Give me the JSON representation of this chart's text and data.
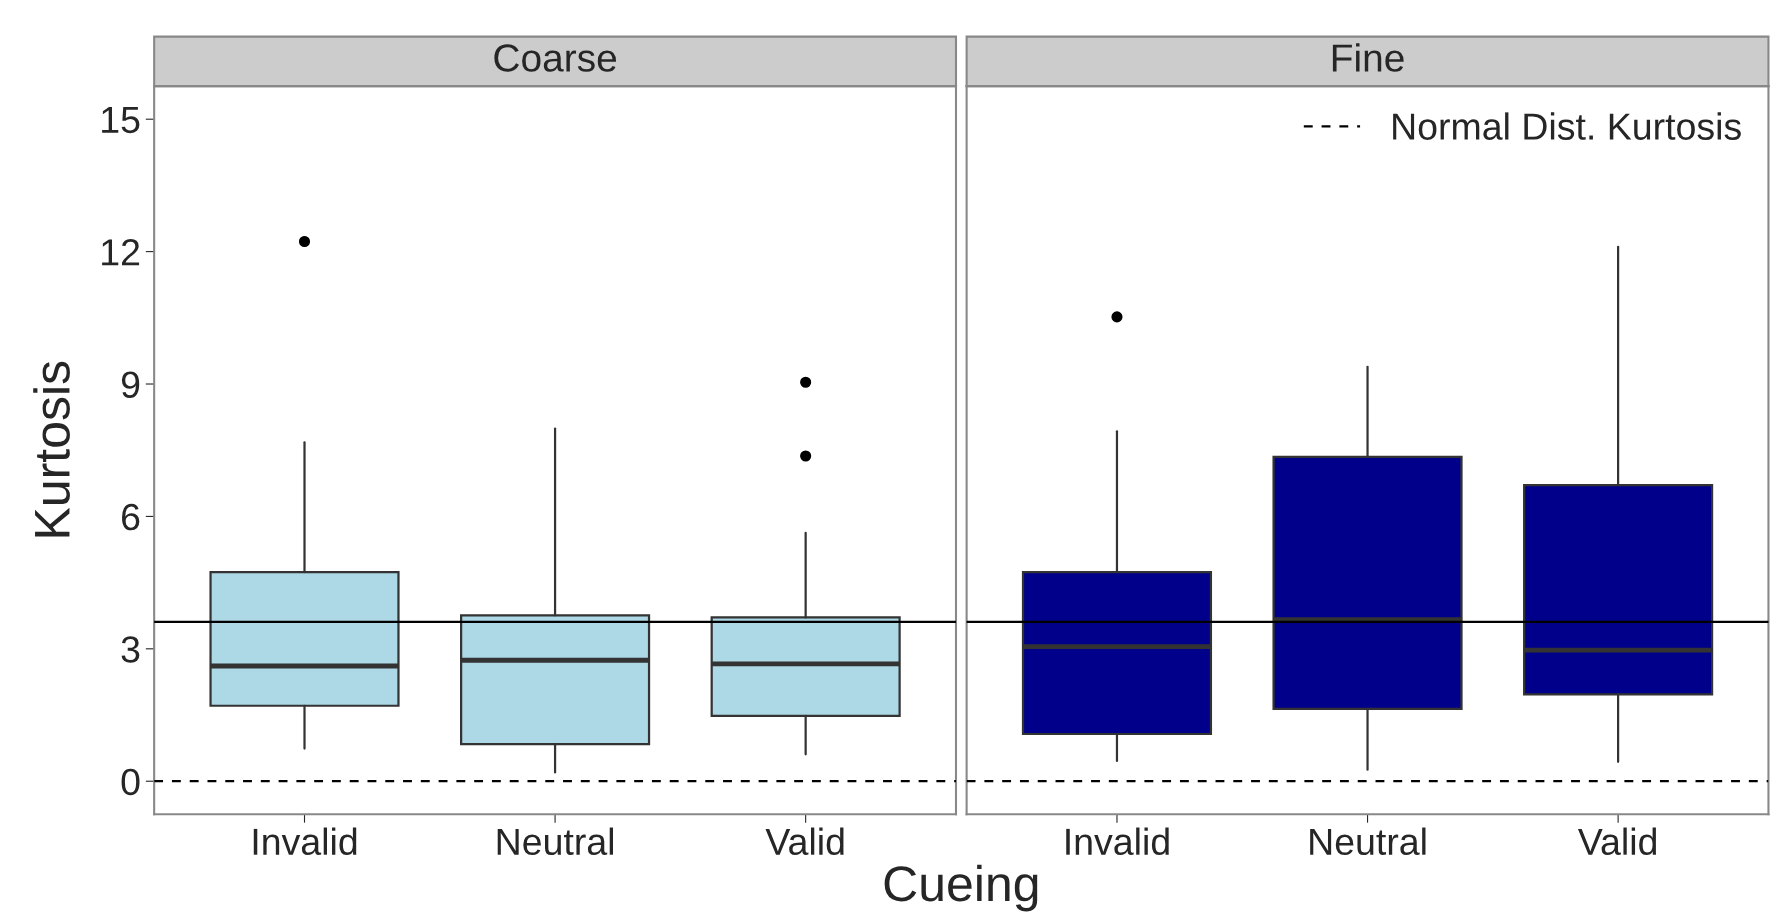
{
  "chart_data": [
    {
      "type": "box",
      "title": "Coarse",
      "categories": [
        "Invalid",
        "Neutral",
        "Valid"
      ],
      "ylabel": "Kurtosis",
      "xlabel": "Cueing",
      "boxes": [
        {
          "low": 0.74,
          "q1": 1.71,
          "median": 2.61,
          "q3": 4.74,
          "high": 7.68,
          "outliers": [
            12.23
          ]
        },
        {
          "low": 0.2,
          "q1": 0.84,
          "median": 2.74,
          "q3": 3.76,
          "high": 7.99
        },
        {
          "low": 0.61,
          "q1": 1.48,
          "median": 2.66,
          "q3": 3.71,
          "high": 5.63,
          "outliers": [
            9.04,
            7.37
          ]
        }
      ],
      "colors": [
        "#add8e6",
        "#add8e6",
        "#add8e6"
      ],
      "ylim": [
        -0.75,
        15.75
      ],
      "yticks": [
        0,
        3,
        6,
        9,
        12,
        15
      ],
      "ref_lines": [
        {
          "axis": "y",
          "value": 3.61,
          "line_style": "solid"
        },
        {
          "axis": "y",
          "value": 0,
          "line_style": "dashed"
        }
      ]
    },
    {
      "type": "box",
      "title": "Fine",
      "categories": [
        "Invalid",
        "Neutral",
        "Valid"
      ],
      "boxes": [
        {
          "low": 0.46,
          "q1": 1.07,
          "median": 3.05,
          "q3": 4.74,
          "high": 7.93,
          "outliers": [
            10.52
          ]
        },
        {
          "low": 0.26,
          "q1": 1.64,
          "median": 3.66,
          "q3": 7.35,
          "high": 9.39
        },
        {
          "low": 0.44,
          "q1": 1.97,
          "median": 2.97,
          "q3": 6.71,
          "high": 12.11
        }
      ],
      "colors": [
        "#00008b",
        "#00008b",
        "#00008b"
      ],
      "ylim": [
        -0.75,
        15.75
      ],
      "yticks": [
        0,
        3,
        6,
        9,
        12,
        15
      ],
      "tick_labels": "x",
      "legend": "top right",
      "ref_lines": [
        {
          "axis": "y",
          "value": 3.61,
          "line_style": "solid"
        },
        {
          "axis": "y",
          "value": 0,
          "line_style": "dashed",
          "label": "Normal Dist. Kurtosis"
        }
      ]
    }
  ]
}
